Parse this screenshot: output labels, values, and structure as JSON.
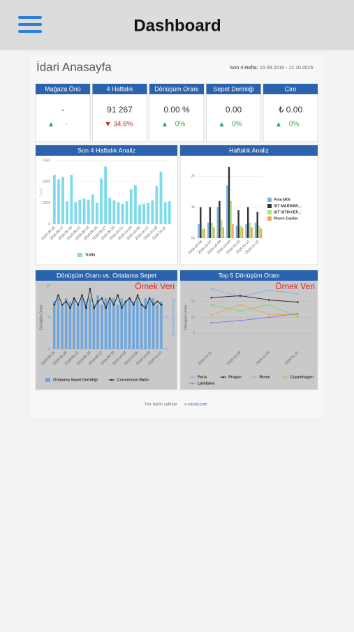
{
  "header": {
    "title": "Dashboard"
  },
  "page": {
    "title": "İdari Anasayfa",
    "range_label": "Son 4 Hafta:",
    "range": "15.09.2016 - 12.10.2016"
  },
  "kpis": [
    {
      "title": "Mağaza Önü",
      "value": "-",
      "change": "-",
      "trend": "up"
    },
    {
      "title": "4 Haftalık",
      "value": "91 267",
      "change": "34.6%",
      "trend": "down"
    },
    {
      "title": "Dönüşüm Oranı",
      "value": "0.00 %",
      "change": "0%",
      "trend": "up"
    },
    {
      "title": "Sepet Derinliği",
      "value": "0.00",
      "change": "0%",
      "trend": "up"
    },
    {
      "title": "Ciro",
      "value": "₺ 0.00",
      "change": "0%",
      "trend": "up"
    }
  ],
  "charts": [
    {
      "type": "bar",
      "title": "Son 4 Haftalık Analiz",
      "y_label": "Trafik",
      "legend": "bottom",
      "categories": [
        "2016-09-15",
        null,
        "2016-09-17",
        null,
        "2016-09-19",
        null,
        "2016-09-21",
        null,
        "2016-09-23",
        null,
        "2016-09-25",
        null,
        "2016-09-27",
        null,
        "2016-09-29",
        null,
        "2016-10-01",
        null,
        "2016-10-03",
        null,
        "2016-10-05",
        null,
        "2016-10-07",
        null,
        "2016-10-09",
        null,
        "2016-10-11",
        null
      ],
      "ylim": [
        0,
        7500
      ],
      "yticks": [
        0,
        2500,
        5000,
        7500
      ],
      "series": [
        {
          "name": "Trafik",
          "color": "#7fdbea",
          "kind": "bar",
          "values": [
            5800,
            5300,
            5600,
            2700,
            5800,
            2600,
            2900,
            3000,
            2900,
            3500,
            2500,
            5400,
            6800,
            3100,
            2800,
            2600,
            2400,
            2700,
            4100,
            4600,
            2300,
            2400,
            2500,
            2800,
            4500,
            6200,
            2600,
            2700
          ]
        }
      ]
    },
    {
      "type": "grouped_bar",
      "title": "Haftalık Analiz",
      "legend": "right",
      "categories": [
        "2016-10-06",
        "2016-10-07",
        "2016-10-08",
        "2016-10-09",
        "2016-10-10",
        "2016-10-11",
        "2016-10-12"
      ],
      "ylim": [
        0,
        2500
      ],
      "yticks": [
        {
          "value": 0,
          "label": "0k"
        },
        {
          "value": 1000,
          "label": "1k"
        },
        {
          "value": 2000,
          "label": "2k"
        }
      ],
      "series": [
        {
          "name": "Pola MOI",
          "color": "#7eb2e6",
          "kind": "bar",
          "values": [
            450,
            500,
            1000,
            1700,
            400,
            450,
            500
          ]
        },
        {
          "name": "IST MARMAR...",
          "color": "#333333",
          "kind": "bar",
          "values": [
            1000,
            1000,
            1200,
            2300,
            900,
            1000,
            850
          ]
        },
        {
          "name": "IST ISTINYEP...",
          "color": "#a6e87c",
          "kind": "bar",
          "values": [
            300,
            500,
            600,
            1200,
            400,
            500,
            400
          ]
        },
        {
          "name": "Pierre Cardin",
          "color": "#f2a54a",
          "kind": "bar",
          "values": [
            300,
            350,
            350,
            450,
            350,
            350,
            300
          ]
        }
      ]
    },
    {
      "type": "combo",
      "title": "Dönüşüm Oranı vs. Ortalama Sepet",
      "annotation": "Örnek Veri",
      "y_label": "Dönüşüm Oranı",
      "y2_label": "Ortalama Sepet Derinliği",
      "legend": "bottom",
      "categories": [
        "2016-09-15",
        null,
        null,
        "2016-09-18",
        null,
        null,
        "2016-09-21",
        null,
        null,
        "2016-09-24",
        null,
        null,
        "2016-09-27",
        null,
        null,
        "2016-09-30",
        null,
        null,
        "2016-10-03",
        null,
        null,
        "2016-10-06",
        null,
        null,
        "2016-10-09",
        null,
        null,
        "2016-10-12"
      ],
      "ylim": [
        0,
        10
      ],
      "yticks": [
        0,
        5,
        10
      ],
      "y2lim": [
        0,
        10
      ],
      "y2ticks": [
        0,
        5,
        10
      ],
      "series": [
        {
          "name": "Ortalama Sepet Derinliği",
          "color": "#6fa6dc",
          "kind": "bar",
          "values": [
            7.5,
            8,
            7,
            8,
            7.5,
            8,
            7,
            8,
            7.5,
            8,
            7,
            8.5,
            7,
            8,
            7.5,
            8,
            7,
            8,
            7.5,
            8,
            7.5,
            8,
            7,
            8,
            7.5,
            8,
            7,
            7.5
          ]
        },
        {
          "name": "Conversion Ratio",
          "color": "#222222",
          "kind": "line",
          "axis": "y2",
          "values": [
            7,
            8.5,
            7,
            7.5,
            6.5,
            8,
            7,
            8.5,
            6.5,
            9.5,
            6.5,
            7.5,
            8,
            6.5,
            8,
            7,
            8.5,
            6.5,
            7.5,
            8,
            7,
            8.5,
            7,
            6.5,
            8,
            7,
            7.5,
            7
          ]
        }
      ]
    },
    {
      "type": "line",
      "title": "Top 5 Dönüşüm Oranı",
      "annotation": "Örnek Veri",
      "y_label": "Dönüşüm Oranı",
      "legend": "bottom",
      "categories": [
        "2016-10-21",
        "2016-10-28",
        "2016-11-04",
        "2016-11-11"
      ],
      "ylim": [
        0,
        20
      ],
      "yticks": [
        5,
        10,
        15
      ],
      "series": [
        {
          "name": "Paris",
          "color": "#7eb2e6",
          "kind": "line",
          "values": [
            19,
            16.5,
            18.5,
            17.5
          ]
        },
        {
          "name": "Prague",
          "color": "#333333",
          "kind": "line",
          "values": [
            16.2,
            16.8,
            15.5,
            14.8
          ]
        },
        {
          "name": "Rome",
          "color": "#7fd46a",
          "kind": "line",
          "values": [
            14,
            12,
            14,
            10.2
          ]
        },
        {
          "name": "Copenhagen",
          "color": "#f2a54a",
          "kind": "line",
          "values": [
            10.8,
            14,
            11,
            10.8
          ]
        },
        {
          "name": "Ljubljana",
          "color": "#8a7fd6",
          "kind": "line",
          "values": [
            8.3,
            9,
            10,
            11.2
          ]
        }
      ]
    }
  ],
  "footer": {
    "text": "Her hakkı saklıdır",
    "link": "v-count.com"
  }
}
